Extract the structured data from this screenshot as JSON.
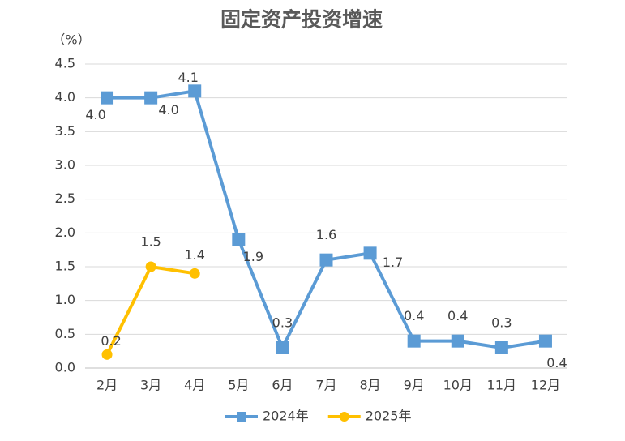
{
  "chart_data": {
    "type": "line",
    "title": "固定资产投资增速",
    "y_unit": "（%）",
    "categories": [
      "2月",
      "3月",
      "4月",
      "5月",
      "6月",
      "7月",
      "8月",
      "9月",
      "10月",
      "11月",
      "12月"
    ],
    "series": [
      {
        "name": "2024年",
        "color": "#5b9bd5",
        "marker": "square",
        "values": [
          4.0,
          4.0,
          4.1,
          1.9,
          0.3,
          1.6,
          1.7,
          0.4,
          0.4,
          0.3,
          0.4
        ],
        "value_labels": [
          "4.0",
          "4.0",
          "4.1",
          "1.9",
          "0.3",
          "1.6",
          "1.7",
          "0.4",
          "0.4",
          "0.3",
          "0.4"
        ]
      },
      {
        "name": "2025年",
        "color": "#ffc000",
        "marker": "circle",
        "values": [
          0.2,
          1.5,
          1.4,
          null,
          null,
          null,
          null,
          null,
          null,
          null,
          null
        ],
        "value_labels": [
          "0.2",
          "1.5",
          "1.4",
          null,
          null,
          null,
          null,
          null,
          null,
          null,
          null
        ]
      }
    ],
    "ylim": [
      0,
      4.5
    ],
    "yticks": [
      {
        "value": 0,
        "label": "0.0"
      },
      {
        "value": 0.5,
        "label": "0.5"
      },
      {
        "value": 1,
        "label": "1.0"
      },
      {
        "value": 1.5,
        "label": "1.5"
      },
      {
        "value": 2,
        "label": "2.0"
      },
      {
        "value": 2.5,
        "label": "2.5"
      },
      {
        "value": 3,
        "label": "3.0"
      },
      {
        "value": 3.5,
        "label": "3.5"
      },
      {
        "value": 4,
        "label": "4.0"
      },
      {
        "value": 4.5,
        "label": "4.5"
      }
    ],
    "grid": true,
    "legend": "bottom"
  }
}
